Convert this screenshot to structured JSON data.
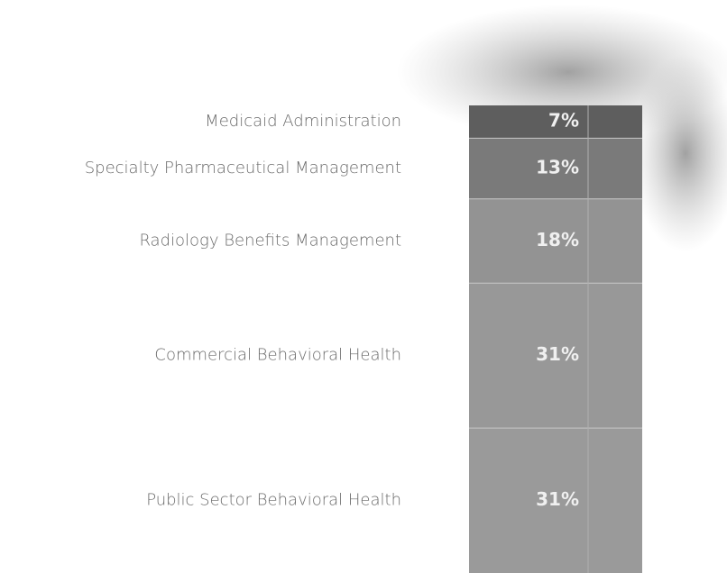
{
  "chart_data": {
    "type": "stacked_bar",
    "categories": [
      "Medicaid Administration",
      "Specialty Pharmaceutical Management",
      "Radiology Benefits Management",
      "Commercial Behavioral Health",
      "Public Sector Behavioral Health"
    ],
    "values": [
      7,
      13,
      18,
      31,
      31
    ],
    "value_labels": [
      "7%",
      "13%",
      "18%",
      "31%",
      "31%"
    ],
    "colors": [
      "#5e5e5e",
      "#7a7a7a",
      "#939393",
      "#989898",
      "#9a9a9a"
    ]
  }
}
